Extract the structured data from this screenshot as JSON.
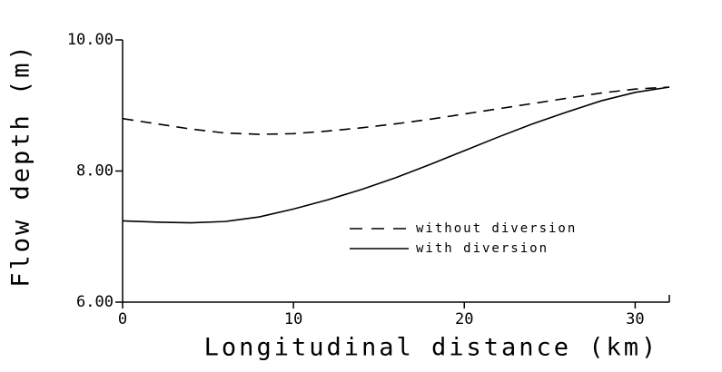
{
  "chart_data": {
    "type": "line",
    "x_label": "Longitudinal distance (km)",
    "y_label": "Flow depth (m)",
    "x": [
      0,
      2,
      4,
      6,
      8,
      10,
      12,
      14,
      16,
      18,
      20,
      22,
      24,
      26,
      28,
      30,
      32
    ],
    "series": [
      {
        "name": "without diversion",
        "color": "#000000",
        "dash": true,
        "values": [
          8.8,
          8.72,
          8.64,
          8.58,
          8.56,
          8.57,
          8.61,
          8.66,
          8.72,
          8.79,
          8.87,
          8.95,
          9.03,
          9.11,
          9.19,
          9.25,
          9.28
        ]
      },
      {
        "name": "with diversion",
        "color": "#000000",
        "dash": false,
        "values": [
          7.24,
          7.22,
          7.21,
          7.23,
          7.3,
          7.42,
          7.56,
          7.72,
          7.9,
          8.1,
          8.31,
          8.52,
          8.72,
          8.9,
          9.07,
          9.2,
          9.28
        ]
      }
    ],
    "xlim": [
      0,
      32
    ],
    "xticks": [
      0,
      10,
      20,
      30
    ],
    "ylim": [
      6,
      10
    ],
    "yticks": [
      {
        "value": 6,
        "label": "6.00"
      },
      {
        "value": 8,
        "label": "8.00"
      },
      {
        "value": 10,
        "label": "10.00"
      }
    ],
    "grid": false
  }
}
